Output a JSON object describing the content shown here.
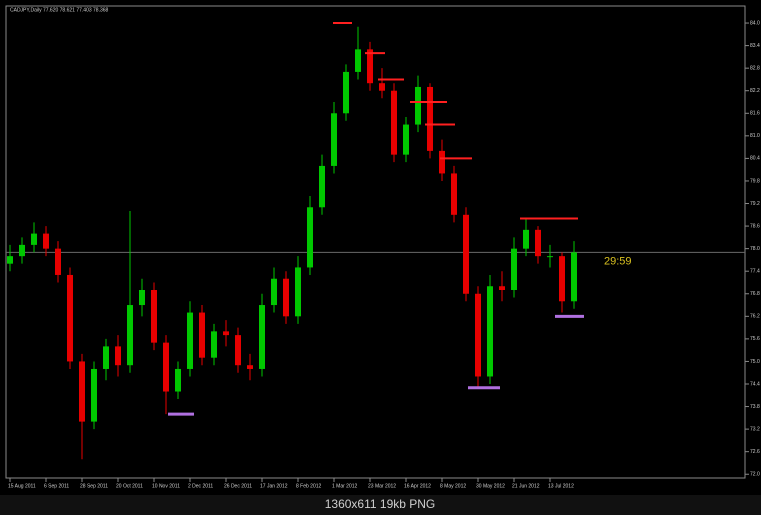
{
  "chart_data": {
    "type": "candlestick",
    "title": "CADJPY,Daily 77.620 78.621 77.403 78.368",
    "timer": "29:59",
    "footer": "1360x611 19kb PNG",
    "categories": [
      "15 Aug 2011",
      null,
      null,
      "6 Sep 2011",
      null,
      null,
      "28 Sep 2011",
      null,
      null,
      "20 Oct 2011",
      null,
      null,
      "10 Nov 2011",
      null,
      null,
      "2 Dec 2011",
      null,
      null,
      "26 Dec 2011",
      null,
      null,
      "17 Jan 2012",
      null,
      null,
      "8 Feb 2012",
      null,
      null,
      "1 Mar 2012",
      null,
      null,
      "23 Mar 2012",
      null,
      null,
      "16 Apr 2012",
      null,
      null,
      "8 May 2012",
      null,
      null,
      "30 May 2012",
      null,
      null,
      "21 Jun 2012",
      null,
      null,
      "13 Jul 2012",
      null,
      null
    ],
    "open": [
      77.6,
      77.8,
      78.1,
      78.4,
      78.0,
      77.3,
      75.0,
      73.4,
      74.8,
      75.4,
      74.9,
      76.5,
      76.9,
      75.5,
      74.2,
      74.8,
      76.3,
      75.1,
      75.8,
      75.7,
      74.9,
      74.8,
      76.5,
      77.2,
      76.2,
      77.5,
      79.1,
      80.2,
      81.6,
      82.7,
      83.3,
      82.4,
      82.2,
      80.5,
      81.3,
      82.3,
      80.6,
      80.0,
      78.9,
      76.8,
      74.6,
      77.0,
      76.9,
      78.0,
      78.5,
      77.8,
      77.8,
      76.6
    ],
    "high": [
      78.1,
      78.3,
      78.7,
      78.6,
      78.2,
      77.5,
      75.2,
      75.0,
      75.6,
      75.7,
      79.0,
      77.2,
      77.1,
      75.7,
      75.0,
      76.6,
      76.5,
      76.0,
      76.1,
      75.9,
      75.2,
      76.8,
      77.5,
      77.4,
      77.8,
      79.4,
      80.5,
      81.9,
      82.9,
      83.9,
      83.5,
      82.8,
      82.4,
      81.5,
      82.6,
      82.4,
      80.9,
      80.2,
      79.1,
      77.0,
      77.3,
      77.4,
      78.3,
      78.8,
      78.6,
      78.1,
      77.9,
      78.2
    ],
    "low": [
      77.4,
      77.6,
      77.9,
      77.8,
      77.1,
      74.8,
      72.4,
      73.2,
      74.5,
      74.6,
      74.7,
      76.2,
      75.3,
      73.6,
      74.0,
      74.6,
      74.9,
      74.9,
      75.4,
      74.7,
      74.5,
      74.6,
      76.3,
      76.0,
      76.0,
      77.3,
      78.9,
      80.0,
      81.4,
      82.5,
      82.2,
      82.0,
      80.3,
      80.3,
      81.1,
      80.4,
      79.8,
      78.7,
      76.6,
      74.3,
      74.4,
      76.6,
      76.7,
      77.8,
      77.6,
      77.5,
      76.3,
      76.4
    ],
    "close": [
      77.8,
      78.1,
      78.4,
      78.0,
      77.3,
      75.0,
      73.4,
      74.8,
      75.4,
      74.9,
      76.5,
      76.9,
      75.5,
      74.2,
      74.8,
      76.3,
      75.1,
      75.8,
      75.7,
      74.9,
      74.8,
      76.5,
      77.2,
      76.2,
      77.5,
      79.1,
      80.2,
      81.6,
      82.7,
      83.3,
      82.4,
      82.2,
      80.5,
      81.3,
      82.3,
      80.6,
      80.0,
      78.9,
      76.8,
      74.6,
      77.0,
      76.9,
      78.0,
      78.5,
      77.8,
      77.8,
      76.6,
      77.9
    ],
    "up_color": "#00c800",
    "down_color": "#e80000",
    "resistance_levels": [
      84.0,
      83.2,
      82.5,
      81.9,
      81.3,
      80.4,
      78.8
    ],
    "resistance_color": "#ff2020",
    "support_levels": [
      73.6,
      74.3,
      76.2
    ],
    "support_color": "#b070e0",
    "ylim": [
      71.9,
      84.4
    ],
    "yticks": [
      {
        "value": 84,
        "label": "84.0"
      },
      83.4,
      82.8,
      82.2,
      81.6,
      {
        "value": 81,
        "label": "81.0"
      },
      80.4,
      79.8,
      79.2,
      78.6,
      {
        "value": 78,
        "label": "78.0"
      },
      77.4,
      76.8,
      76.2,
      75.6,
      {
        "value": 75,
        "label": "75.0"
      },
      74.4,
      73.8,
      73.2,
      72.6,
      {
        "value": 72,
        "label": "72.0"
      }
    ]
  }
}
